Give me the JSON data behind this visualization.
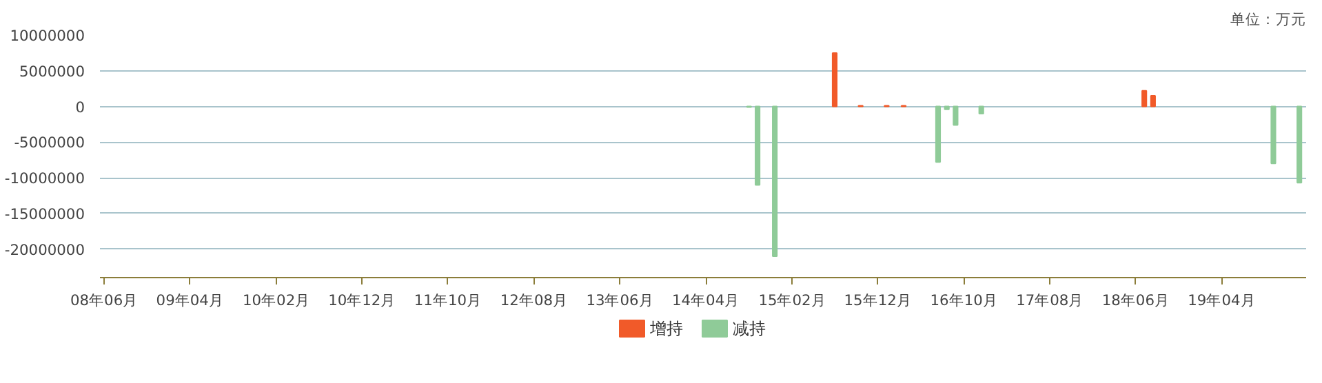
{
  "chart_data": {
    "type": "bar",
    "annotations": [
      "单位：万元"
    ],
    "series": [
      {
        "name": "增持",
        "color": "#f15a29",
        "x": [
          "2015-07",
          "2015-10",
          "2016-01",
          "2016-03",
          "2018-07",
          "2018-08"
        ],
        "values": [
          7500000,
          100000,
          100000,
          100000,
          2200000,
          1500000
        ]
      },
      {
        "name": "减持",
        "color": "#8fcb98",
        "x": [
          "2014-09",
          "2014-10",
          "2014-12",
          "2016-07",
          "2016-08",
          "2016-09",
          "2016-12",
          "2019-10",
          "2020-01"
        ],
        "values": [
          -100000,
          -11000000,
          -21000000,
          -7800000,
          -400000,
          -2600000,
          -1000000,
          -8000000,
          -10700000
        ]
      }
    ],
    "xlim": [
      "2008-05-17",
      "2020-01-25"
    ],
    "xticks": [
      {
        "value": "2008-06",
        "label": "08年06月"
      },
      {
        "value": "2009-04",
        "label": "09年04月"
      },
      {
        "value": "2010-02",
        "label": "10年02月"
      },
      {
        "value": "2010-12",
        "label": "10年12月"
      },
      {
        "value": "2011-10",
        "label": "11年10月"
      },
      {
        "value": "2012-08",
        "label": "12年08月"
      },
      {
        "value": "2013-06",
        "label": "13年06月"
      },
      {
        "value": "2014-04",
        "label": "14年04月"
      },
      {
        "value": "2015-02",
        "label": "15年02月"
      },
      {
        "value": "2015-12",
        "label": "15年12月"
      },
      {
        "value": "2016-10",
        "label": "16年10月"
      },
      {
        "value": "2017-08",
        "label": "17年08月"
      },
      {
        "value": "2018-06",
        "label": "18年06月"
      },
      {
        "value": "2019-04",
        "label": "19年04月"
      }
    ],
    "ylim": [
      -24000000,
      10000000
    ],
    "yticks": [
      -20000000,
      -15000000,
      -10000000,
      -5000000,
      0,
      5000000,
      10000000
    ],
    "grid": "y",
    "legend": "bottom"
  }
}
